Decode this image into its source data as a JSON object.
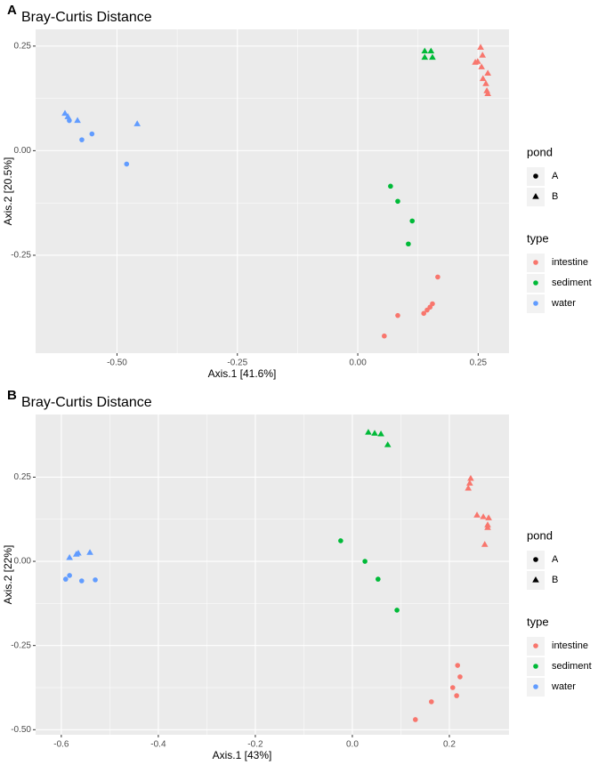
{
  "chart_data": [
    {
      "type": "scatter",
      "panel": "A",
      "title": "Bray-Curtis Distance",
      "x_label": "Axis.1   [41.6%]",
      "y_label": "Axis.2   [20.5%]",
      "xlim": [
        -0.669,
        0.314
      ],
      "ylim": [
        -0.484,
        0.29
      ],
      "xticks": [
        {
          "value": -0.5,
          "label": "-0.50"
        },
        -0.25,
        {
          "value": 0,
          "label": "0.00"
        },
        0.25
      ],
      "yticks": [
        -0.25,
        {
          "value": 0,
          "label": "0.00"
        },
        0.25
      ],
      "grid": true,
      "shape_legend": {
        "title": "pond",
        "entries": [
          {
            "name": "A",
            "shape": "circle"
          },
          {
            "name": "B",
            "shape": "triangle"
          }
        ]
      },
      "color_legend_title": "type",
      "series": [
        {
          "name": "intestine",
          "color": "#F8766D",
          "x": [
            0.255,
            0.259,
            0.249,
            0.257,
            0.27,
            0.26,
            0.266,
            0.268,
            0.27,
            0.244,
            0.166,
            0.155,
            0.15,
            0.144,
            0.137,
            0.083,
            0.055
          ],
          "y": [
            0.247,
            0.228,
            0.213,
            0.2,
            0.185,
            0.172,
            0.16,
            0.143,
            0.136,
            0.211,
            -0.302,
            -0.366,
            -0.374,
            -0.381,
            -0.389,
            -0.394,
            -0.443
          ],
          "shape": [
            "triangle",
            "triangle",
            "triangle",
            "triangle",
            "triangle",
            "triangle",
            "triangle",
            "triangle",
            "triangle",
            "triangle",
            "circle",
            "circle",
            "circle",
            "circle",
            "circle",
            "circle",
            "circle"
          ]
        },
        {
          "name": "sediment",
          "color": "#00BA38",
          "x": [
            0.139,
            0.152,
            0.139,
            0.155,
            0.068,
            0.083,
            0.113,
            0.105
          ],
          "y": [
            0.238,
            0.238,
            0.223,
            0.223,
            -0.085,
            -0.121,
            -0.168,
            -0.223
          ],
          "shape": [
            "triangle",
            "triangle",
            "triangle",
            "triangle",
            "circle",
            "circle",
            "circle",
            "circle"
          ]
        },
        {
          "name": "water",
          "color": "#619CFF",
          "x": [
            -0.608,
            -0.602,
            -0.582,
            -0.458,
            -0.599,
            -0.573,
            -0.552,
            -0.48
          ],
          "y": [
            0.089,
            0.081,
            0.072,
            0.064,
            0.072,
            0.026,
            0.04,
            -0.032
          ],
          "shape": [
            "triangle",
            "triangle",
            "triangle",
            "triangle",
            "circle",
            "circle",
            "circle",
            "circle"
          ]
        }
      ]
    },
    {
      "type": "scatter",
      "panel": "B",
      "title": "Bray-Curtis Distance",
      "x_label": "Axis.1   [43%]",
      "y_label": "Axis.2   [22%]",
      "xlim": [
        -0.653,
        0.323
      ],
      "ylim": [
        -0.515,
        0.436
      ],
      "xticks": [
        -0.6,
        -0.4,
        -0.2,
        {
          "value": 0,
          "label": "0.0"
        },
        0.2
      ],
      "yticks": [
        {
          "value": -0.5,
          "label": "-0.50"
        },
        -0.25,
        {
          "value": 0,
          "label": "0.00"
        },
        0.25
      ],
      "grid": true,
      "shape_legend": {
        "title": "pond",
        "entries": [
          {
            "name": "A",
            "shape": "circle"
          },
          {
            "name": "B",
            "shape": "triangle"
          }
        ]
      },
      "color_legend_title": "type",
      "series": [
        {
          "name": "intestine",
          "color": "#F8766D",
          "x": [
            0.244,
            0.242,
            0.239,
            0.257,
            0.27,
            0.281,
            0.279,
            0.279,
            0.273,
            0.217,
            0.222,
            0.207,
            0.215,
            0.163,
            0.13
          ],
          "y": [
            0.246,
            0.232,
            0.217,
            0.137,
            0.132,
            0.129,
            0.108,
            0.1,
            0.05,
            -0.309,
            -0.343,
            -0.375,
            -0.399,
            -0.417,
            -0.47
          ],
          "shape": [
            "triangle",
            "triangle",
            "triangle",
            "triangle",
            "triangle",
            "triangle",
            "triangle",
            "triangle",
            "triangle",
            "circle",
            "circle",
            "circle",
            "circle",
            "circle",
            "circle"
          ]
        },
        {
          "name": "sediment",
          "color": "#00BA38",
          "x": [
            0.033,
            0.046,
            0.059,
            0.073,
            -0.024,
            0.026,
            0.053,
            0.092
          ],
          "y": [
            0.383,
            0.38,
            0.378,
            0.346,
            0.061,
            0.0,
            -0.053,
            -0.145
          ],
          "shape": [
            "triangle",
            "triangle",
            "triangle",
            "triangle",
            "circle",
            "circle",
            "circle",
            "circle"
          ]
        },
        {
          "name": "water",
          "color": "#619CFF",
          "x": [
            -0.583,
            -0.569,
            -0.565,
            -0.541,
            -0.583,
            -0.591,
            -0.558,
            -0.53
          ],
          "y": [
            0.011,
            0.021,
            0.024,
            0.026,
            -0.042,
            -0.053,
            -0.058,
            -0.055
          ],
          "shape": [
            "triangle",
            "triangle",
            "triangle",
            "triangle",
            "circle",
            "circle",
            "circle",
            "circle"
          ]
        }
      ]
    }
  ]
}
